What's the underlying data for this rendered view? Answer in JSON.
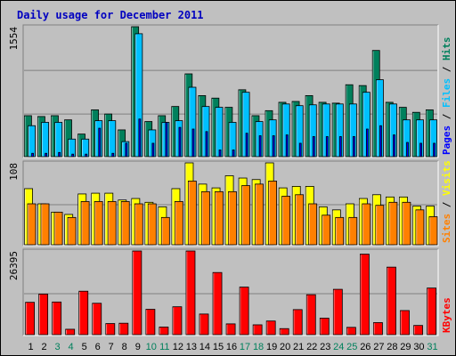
{
  "title": "Daily usage for December 2011",
  "colors": {
    "background": "#c0c0c0",
    "plot_bg": "#c0c0c0",
    "hits": "#00805c",
    "files": "#00c0ff",
    "pages": "#0000ff",
    "visits": "#ffff00",
    "sites": "#ff8000",
    "kbytes": "#ff0000",
    "title": "#0000c0",
    "weekday_label": "#000000",
    "weekend_label": "#00805c"
  },
  "chart_data": [
    {
      "type": "bar",
      "name": "hits-files-pages",
      "x": [
        1,
        2,
        3,
        4,
        5,
        6,
        7,
        8,
        9,
        10,
        11,
        12,
        13,
        14,
        15,
        16,
        17,
        18,
        19,
        20,
        21,
        22,
        23,
        24,
        25,
        26,
        27,
        28,
        29,
        30,
        31
      ],
      "ymax_label": "1554",
      "ymax": 1554,
      "legend": [
        {
          "label": "Pages",
          "color_key": "pages"
        },
        {
          "label": "Files",
          "color_key": "files"
        },
        {
          "label": "Hits",
          "color_key": "hits"
        }
      ],
      "series": [
        {
          "name": "Hits",
          "values": [
            490,
            480,
            490,
            440,
            270,
            560,
            510,
            320,
            1554,
            420,
            490,
            600,
            990,
            730,
            700,
            590,
            800,
            490,
            550,
            650,
            660,
            730,
            650,
            640,
            860,
            850,
            1270,
            650,
            590,
            530,
            560
          ]
        },
        {
          "name": "Files",
          "values": [
            370,
            410,
            410,
            210,
            210,
            430,
            430,
            180,
            1470,
            320,
            410,
            430,
            830,
            600,
            590,
            410,
            770,
            420,
            440,
            630,
            610,
            620,
            630,
            630,
            630,
            770,
            920,
            630,
            440,
            440,
            440
          ]
        },
        {
          "name": "Pages",
          "values": [
            40,
            40,
            50,
            30,
            30,
            340,
            40,
            160,
            450,
            160,
            410,
            350,
            330,
            300,
            80,
            80,
            280,
            250,
            250,
            260,
            160,
            240,
            240,
            240,
            240,
            330,
            370,
            260,
            170,
            160,
            160
          ]
        }
      ]
    },
    {
      "type": "bar",
      "name": "visits-sites",
      "x": [
        1,
        2,
        3,
        4,
        5,
        6,
        7,
        8,
        9,
        10,
        11,
        12,
        13,
        14,
        15,
        16,
        17,
        18,
        19,
        20,
        21,
        22,
        23,
        24,
        25,
        26,
        27,
        28,
        29,
        30,
        31
      ],
      "ymax_label": "108",
      "ymax": 108,
      "legend": [
        {
          "label": "Sites",
          "color_key": "sites"
        },
        {
          "label": "Visits",
          "color_key": "visits"
        }
      ],
      "series": [
        {
          "name": "Visits",
          "values": [
            74,
            54,
            43,
            40,
            67,
            68,
            68,
            59,
            61,
            56,
            50,
            74,
            108,
            80,
            75,
            91,
            88,
            86,
            108,
            75,
            77,
            77,
            50,
            46,
            54,
            61,
            66,
            63,
            63,
            51,
            51
          ]
        },
        {
          "name": "Sites",
          "values": [
            54,
            54,
            43,
            36,
            57,
            57,
            57,
            57,
            54,
            54,
            36,
            57,
            84,
            70,
            70,
            70,
            78,
            80,
            84,
            64,
            66,
            54,
            39,
            36,
            36,
            54,
            52,
            56,
            56,
            46,
            37
          ]
        }
      ]
    },
    {
      "type": "bar",
      "name": "kbytes",
      "x": [
        1,
        2,
        3,
        4,
        5,
        6,
        7,
        8,
        9,
        10,
        11,
        12,
        13,
        14,
        15,
        16,
        17,
        18,
        19,
        20,
        21,
        22,
        23,
        24,
        25,
        26,
        27,
        28,
        29,
        30,
        31
      ],
      "ymax_label": "26395",
      "ymax": 26395,
      "legend": [
        {
          "label": "KBytes",
          "color_key": "kbytes"
        }
      ],
      "series": [
        {
          "name": "KBytes",
          "values": [
            10200,
            12800,
            10300,
            1700,
            13700,
            9900,
            3500,
            3600,
            26395,
            8000,
            2400,
            8800,
            26395,
            6500,
            19600,
            3400,
            15000,
            3100,
            4300,
            1900,
            7900,
            12600,
            5200,
            14300,
            2300,
            25400,
            3800,
            21300,
            7600,
            2900,
            14700
          ]
        }
      ]
    }
  ],
  "x_labels": [
    {
      "text": "1",
      "weekend": false
    },
    {
      "text": "2",
      "weekend": false
    },
    {
      "text": "3",
      "weekend": true
    },
    {
      "text": "4",
      "weekend": true
    },
    {
      "text": "5",
      "weekend": false
    },
    {
      "text": "6",
      "weekend": false
    },
    {
      "text": "7",
      "weekend": false
    },
    {
      "text": "8",
      "weekend": false
    },
    {
      "text": "9",
      "weekend": false
    },
    {
      "text": "10",
      "weekend": true
    },
    {
      "text": "11",
      "weekend": true
    },
    {
      "text": "12",
      "weekend": false
    },
    {
      "text": "13",
      "weekend": false
    },
    {
      "text": "14",
      "weekend": false
    },
    {
      "text": "15",
      "weekend": false
    },
    {
      "text": "16",
      "weekend": false
    },
    {
      "text": "17",
      "weekend": true
    },
    {
      "text": "18",
      "weekend": true
    },
    {
      "text": "19",
      "weekend": false
    },
    {
      "text": "20",
      "weekend": false
    },
    {
      "text": "21",
      "weekend": false
    },
    {
      "text": "22",
      "weekend": false
    },
    {
      "text": "23",
      "weekend": false
    },
    {
      "text": "24",
      "weekend": true
    },
    {
      "text": "25",
      "weekend": true
    },
    {
      "text": "26",
      "weekend": false
    },
    {
      "text": "27",
      "weekend": false
    },
    {
      "text": "28",
      "weekend": false
    },
    {
      "text": "29",
      "weekend": false
    },
    {
      "text": "30",
      "weekend": false
    },
    {
      "text": "31",
      "weekend": true
    }
  ]
}
